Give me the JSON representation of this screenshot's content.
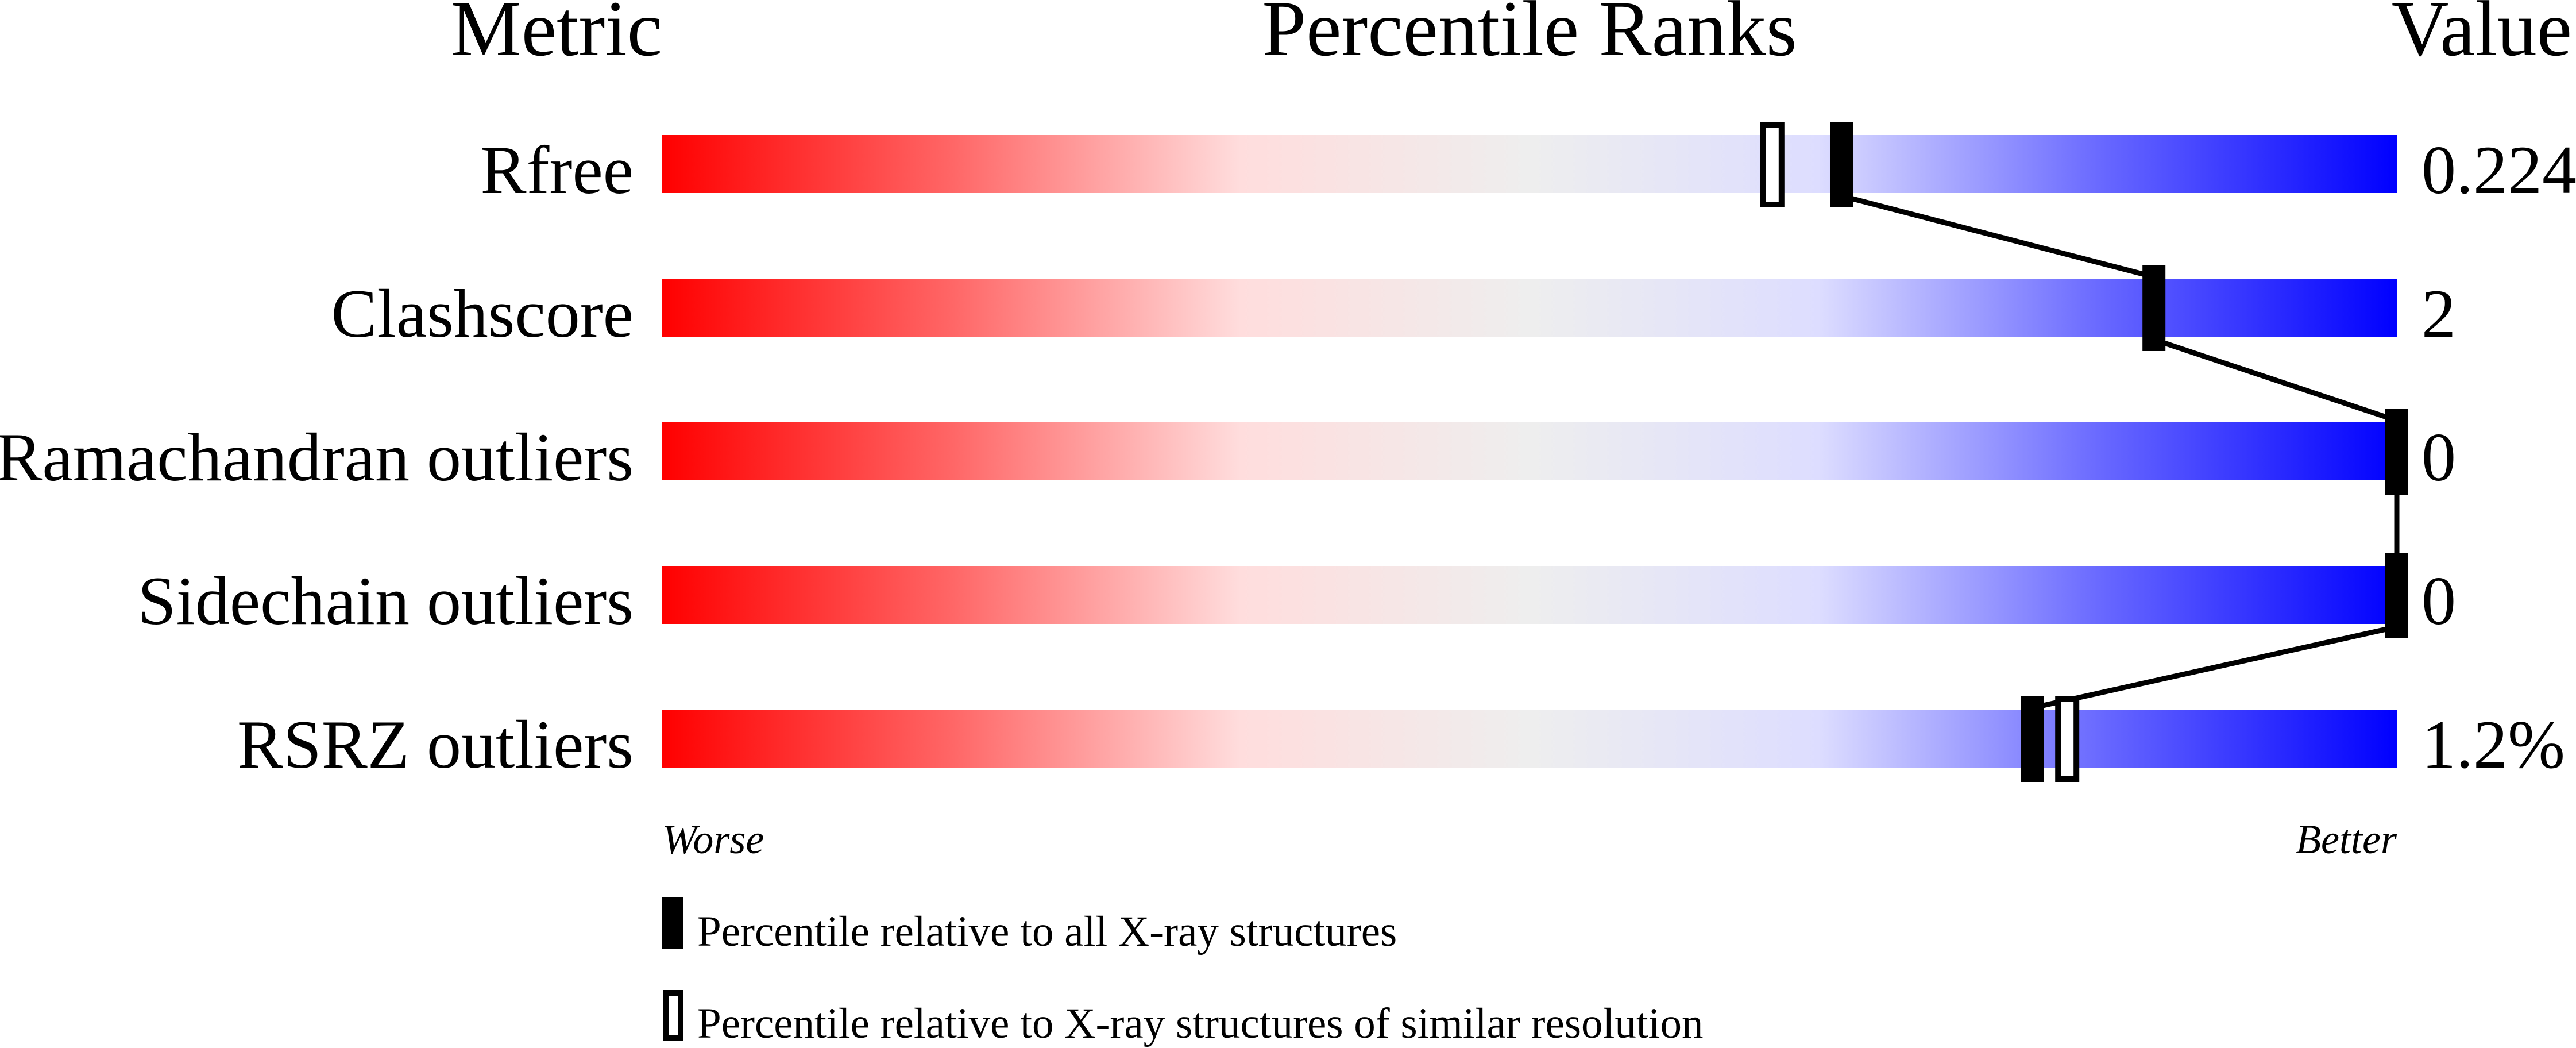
{
  "chart_data": {
    "type": "percentile-bar",
    "headers": {
      "metric": "Metric",
      "ranks": "Percentile Ranks",
      "value": "Value"
    },
    "xlim": [
      0,
      100
    ],
    "axis_labels": {
      "left": "Worse",
      "right": "Better"
    },
    "gradient_colors": [
      "#ff0000",
      "#ff6666",
      "#ffdddd",
      "#eeeeee",
      "#ddddff",
      "#6666ff",
      "#0000ff"
    ],
    "rows": [
      {
        "metric": "Rfree",
        "value": "0.224",
        "percentile_all": 68,
        "percentile_similar": 64
      },
      {
        "metric": "Clashscore",
        "value": "2",
        "percentile_all": 86,
        "percentile_similar": null
      },
      {
        "metric": "Ramachandran outliers",
        "value": "0",
        "percentile_all": 100,
        "percentile_similar": null
      },
      {
        "metric": "Sidechain outliers",
        "value": "0",
        "percentile_all": 100,
        "percentile_similar": null
      },
      {
        "metric": "RSRZ outliers",
        "value": "1.2%",
        "percentile_all": 79,
        "percentile_similar": 81
      }
    ],
    "legend": [
      {
        "marker": "filled",
        "label": "Percentile relative to all X-ray structures"
      },
      {
        "marker": "hollow",
        "label": "Percentile relative to X-ray structures of similar resolution"
      }
    ]
  }
}
